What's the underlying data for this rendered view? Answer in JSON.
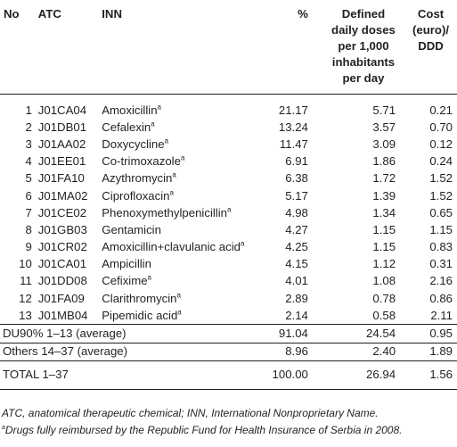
{
  "header": {
    "no": "No",
    "atc": "ATC",
    "inn": "INN",
    "pct": "%",
    "ddd_lines": [
      "Defined",
      "daily doses",
      "per 1,000",
      "inhabitants",
      "per day"
    ],
    "cost_lines": [
      "Cost",
      "(euro)/",
      "DDD"
    ]
  },
  "rows": [
    {
      "no": "1",
      "atc": "J01CA04",
      "inn": "Amoxicillin",
      "sup": "a",
      "pct": "21.17",
      "ddd": "5.71",
      "cost": "0.21"
    },
    {
      "no": "2",
      "atc": "J01DB01",
      "inn": "Cefalexin",
      "sup": "a",
      "pct": "13.24",
      "ddd": "3.57",
      "cost": "0.70"
    },
    {
      "no": "3",
      "atc": "J01AA02",
      "inn": "Doxycycline",
      "sup": "a",
      "pct": "11.47",
      "ddd": "3.09",
      "cost": "0.12"
    },
    {
      "no": "4",
      "atc": "J01EE01",
      "inn": "Co-trimoxazole",
      "sup": "a",
      "pct": "6.91",
      "ddd": "1.86",
      "cost": "0.24"
    },
    {
      "no": "5",
      "atc": "J01FA10",
      "inn": "Azythromycin",
      "sup": "a",
      "pct": "6.38",
      "ddd": "1.72",
      "cost": "1.52"
    },
    {
      "no": "6",
      "atc": "J01MA02",
      "inn": "Ciprofloxacin",
      "sup": "a",
      "pct": "5.17",
      "ddd": "1.39",
      "cost": "1.52"
    },
    {
      "no": "7",
      "atc": "J01CE02",
      "inn": "Phenoxymethylpenicillin",
      "sup": "a",
      "pct": "4.98",
      "ddd": "1.34",
      "cost": "0.65"
    },
    {
      "no": "8",
      "atc": "J01GB03",
      "inn": "Gentamicin",
      "sup": "",
      "pct": "4.27",
      "ddd": "1.15",
      "cost": "1.15"
    },
    {
      "no": "9",
      "atc": "J01CR02",
      "inn": "Amoxicillin+clavulanic acid",
      "sup": "a",
      "pct": "4.25",
      "ddd": "1.15",
      "cost": "0.83"
    },
    {
      "no": "10",
      "atc": "J01CA01",
      "inn": "Ampicillin",
      "sup": "",
      "pct": "4.15",
      "ddd": "1.12",
      "cost": "0.31"
    },
    {
      "no": "11",
      "atc": "J01DD08",
      "inn": "Cefixime",
      "sup": "a",
      "pct": "4.01",
      "ddd": "1.08",
      "cost": "2.16"
    },
    {
      "no": "12",
      "atc": "J01FA09",
      "inn": "Clarithromycin",
      "sup": "a",
      "pct": "2.89",
      "ddd": "0.78",
      "cost": "0.86"
    },
    {
      "no": "13",
      "atc": "J01MB04",
      "inn": "Pipemidic acid",
      "sup": "a",
      "pct": "2.14",
      "ddd": "0.58",
      "cost": "2.11"
    }
  ],
  "summary": [
    {
      "label": "DU90% 1–13 (average)",
      "pct": "91.04",
      "ddd": "24.54",
      "cost": "0.95"
    },
    {
      "label": "Others 14–37 (average)",
      "pct": "8.96",
      "ddd": "2.40",
      "cost": "1.89"
    }
  ],
  "total": {
    "label": "TOTAL 1–37",
    "pct": "100.00",
    "ddd": "26.94",
    "cost": "1.56"
  },
  "notes": {
    "abbrev": "ATC, anatomical therapeutic chemical; INN, International Nonproprietary Name.",
    "footnote_mark": "a",
    "footnote": "Drugs fully reimbursed by the Republic Fund for Health Insurance of Serbia in 2008."
  }
}
